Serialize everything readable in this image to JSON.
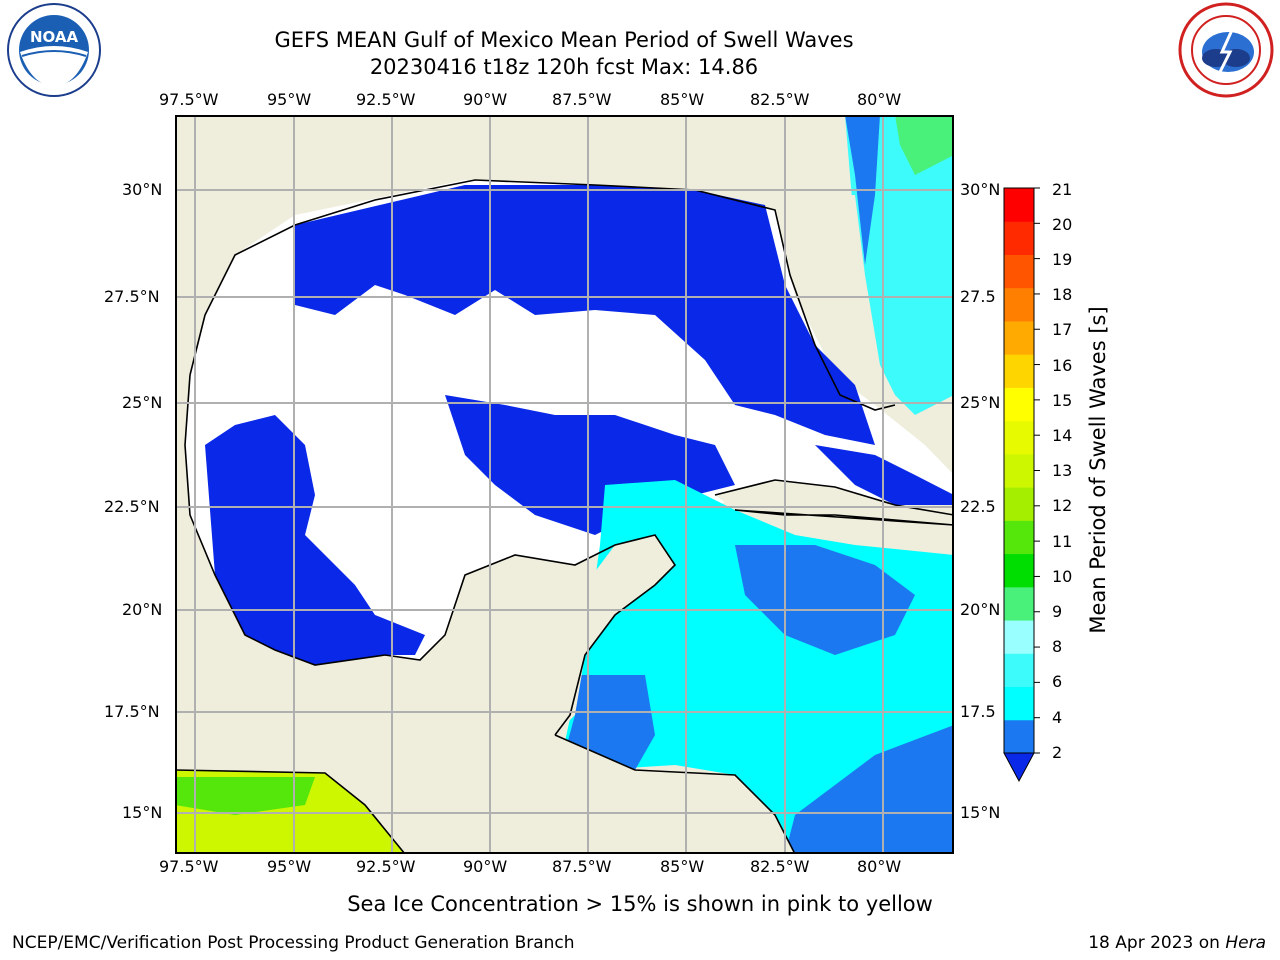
{
  "header": {
    "title_line1": "GEFS MEAN Gulf of Mexico Mean Period of Swell Waves",
    "title_line2": "20230416 t18z 120h fcst   Max: 14.86"
  },
  "logos": {
    "left": "NOAA",
    "left_ring": "NATIONAL OCEANIC AND ATMOSPHERIC ADMINISTRATION · U.S. DEPARTMENT OF COMMERCE",
    "right_ring": "NATIONAL WEATHER SERVICE"
  },
  "map": {
    "lon_labels": [
      "97.5°W",
      "95°W",
      "92.5°W",
      "90°W",
      "87.5°W",
      "85°W",
      "82.5°W",
      "80°W"
    ],
    "lat_labels_left": [
      "30°N",
      "27.5°N",
      "25°N",
      "22.5°N",
      "20°N",
      "17.5°N",
      "15°N"
    ],
    "lat_labels_right": [
      "30°N",
      "27.5",
      "25°N",
      "22.5",
      "20°N",
      "17.5",
      "15°N"
    ],
    "colors": {
      "land": "#efeddc",
      "ocean_no_data": "#ffffff",
      "grid": "#b0b0b0",
      "coast": "#000000"
    }
  },
  "colorbar": {
    "label": "Mean Period of Swell Waves [s]",
    "ticks": [
      "21",
      "20",
      "19",
      "18",
      "17",
      "16",
      "15",
      "14",
      "13",
      "12",
      "11",
      "10",
      "9",
      "8",
      "6",
      "4",
      "2"
    ],
    "colors_bottom_to_top": [
      "#0a28e8",
      "#1b78f0",
      "#00ffff",
      "#3dfbfb",
      "#99ffff",
      "#49f07a",
      "#00dd00",
      "#55e60c",
      "#a5ee00",
      "#ccf700",
      "#e8fa00",
      "#ffff00",
      "#ffd500",
      "#ffaa00",
      "#ff8000",
      "#ff5500",
      "#ff2a00",
      "#ff0000"
    ]
  },
  "footer": {
    "note": "Sea Ice Concentration > 15% is shown in pink to yellow",
    "left": "NCEP/EMC/Verification Post Processing Product Generation Branch",
    "right_date": "18 Apr 2023 on ",
    "right_host": "Hera"
  }
}
